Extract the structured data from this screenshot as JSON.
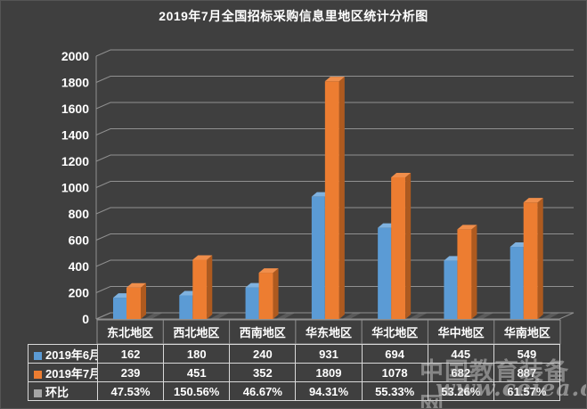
{
  "page": {
    "background": "#3F3F3F"
  },
  "header": {
    "title": "2019年7月全国招标采购信息里地区统计分析图"
  },
  "colors": {
    "background": "#3F3F3F",
    "grid": "#909090",
    "text": "#FFFFFF",
    "table_border": "#D9D9D9",
    "shadow": "#5A5A5A",
    "mom_swatch": "#A5A5A5"
  },
  "chart_data": {
    "type": "bar",
    "subtype": "3d-clustered-column",
    "title": "2019年7月全国招标采购信息里地区统计分析图",
    "categories": [
      "东北地区",
      "西北地区",
      "西南地区",
      "华东地区",
      "华北地区",
      "华中地区",
      "华南地区"
    ],
    "series": [
      {
        "name": "2019年6月",
        "color": "#5B9BD5",
        "color_top": "#7FB2E0",
        "color_side": "#3F709F",
        "values": [
          162,
          180,
          240,
          931,
          694,
          445,
          549
        ]
      },
      {
        "name": "2019年7月",
        "color": "#ED7D31",
        "color_top": "#F08E4B",
        "color_side": "#AE5A1F",
        "values": [
          239,
          451,
          352,
          1809,
          1078,
          682,
          887
        ]
      }
    ],
    "mom_row": {
      "name": "环比",
      "swatch": "#A5A5A5",
      "values": [
        "47.53%",
        "150.56%",
        "46.67%",
        "94.31%",
        "55.33%",
        "53.26%",
        "61.57%"
      ]
    },
    "ylim": [
      0,
      2000
    ],
    "ytick_step": 200,
    "yticks": [
      0,
      200,
      400,
      600,
      800,
      1000,
      1200,
      1400,
      1600,
      1800,
      2000
    ],
    "grid": true,
    "legend_position": "bottom-table"
  },
  "watermark": {
    "line1": "中国教育装备网",
    "line2": "www.ceiea.com"
  }
}
